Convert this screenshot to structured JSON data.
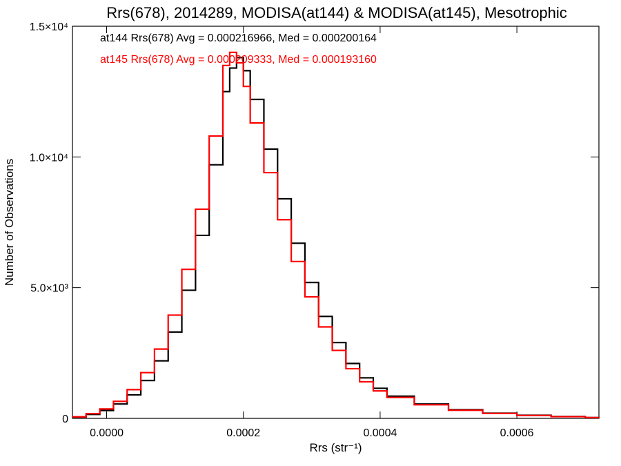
{
  "chart_data": {
    "type": "line",
    "step": true,
    "title": "Rrs(678), 2014289, MODISA(at144) & MODISA(at145), Mesotrophic",
    "xlabel": "Rrs (str⁻¹)",
    "ylabel": "Number of Observations",
    "xlim": [
      -5e-05,
      0.00072
    ],
    "ylim": [
      0,
      15000
    ],
    "xticks": [
      {
        "value": 0.0,
        "label": "0.0000"
      },
      {
        "value": 0.0002,
        "label": "0.0002"
      },
      {
        "value": 0.0004,
        "label": "0.0004"
      },
      {
        "value": 0.0006,
        "label": "0.0006"
      }
    ],
    "yticks": [
      {
        "value": 0,
        "label": "0"
      },
      {
        "value": 5000,
        "label": "5.0×10³"
      },
      {
        "value": 10000,
        "label": "1.0×10⁴"
      },
      {
        "value": 15000,
        "label": "1.5×10⁴"
      }
    ],
    "grid": false,
    "legend_position": "top-left",
    "series": [
      {
        "name": "at144",
        "legend": "at144 Rrs(678) Avg = 0.000216966, Med = 0.000200164",
        "color": "#000000",
        "x": [
          -5e-05,
          -3e-05,
          -1e-05,
          1e-05,
          3e-05,
          5e-05,
          7e-05,
          9e-05,
          0.00011,
          0.00013,
          0.00015,
          0.00017,
          0.00018,
          0.00019,
          0.0002,
          0.00021,
          0.00023,
          0.00025,
          0.00027,
          0.00029,
          0.00031,
          0.00033,
          0.00035,
          0.00037,
          0.00039,
          0.00041,
          0.00045,
          0.0005,
          0.00055,
          0.0006,
          0.00065,
          0.0007,
          0.00072
        ],
        "y": [
          50,
          150,
          300,
          550,
          900,
          1450,
          2200,
          3300,
          4900,
          7000,
          9700,
          12500,
          13400,
          13800,
          13300,
          12200,
          10300,
          8400,
          6700,
          5200,
          3900,
          2900,
          2100,
          1550,
          1150,
          850,
          550,
          330,
          200,
          120,
          70,
          30,
          20
        ]
      },
      {
        "name": "at145",
        "legend": "at145 Rrs(678) Avg = 0.000209333, Med = 0.000193160",
        "color": "#ff0000",
        "x": [
          -5e-05,
          -3e-05,
          -1e-05,
          1e-05,
          3e-05,
          5e-05,
          7e-05,
          9e-05,
          0.00011,
          0.00013,
          0.00015,
          0.00017,
          0.00018,
          0.00019,
          0.0002,
          0.00021,
          0.00023,
          0.00025,
          0.00027,
          0.00029,
          0.00031,
          0.00033,
          0.00035,
          0.00037,
          0.00039,
          0.00041,
          0.00045,
          0.0005,
          0.00055,
          0.0006,
          0.00065,
          0.0007,
          0.00072
        ],
        "y": [
          60,
          180,
          360,
          650,
          1100,
          1750,
          2650,
          3950,
          5700,
          8000,
          10800,
          13500,
          14000,
          13600,
          12700,
          11300,
          9400,
          7600,
          6000,
          4650,
          3500,
          2600,
          1900,
          1400,
          1050,
          800,
          520,
          310,
          190,
          110,
          65,
          30,
          20
        ]
      }
    ]
  }
}
